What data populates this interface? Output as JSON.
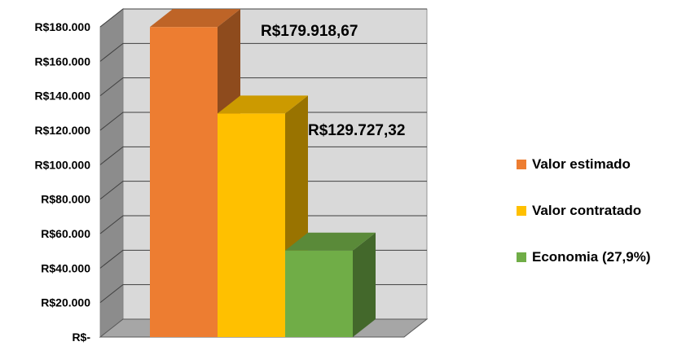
{
  "chart_data": {
    "type": "bar",
    "style": "3d-clustered",
    "categories": [
      ""
    ],
    "series": [
      {
        "name": "Valor estimado",
        "value": 179918.67,
        "color": "#ED7D31",
        "data_label": "R$179.918,67"
      },
      {
        "name": "Valor contratado",
        "value": 129727.32,
        "color": "#FFC000",
        "data_label": "R$129.727,32"
      },
      {
        "name": "Economia (27,9%)",
        "value": 50191.35,
        "color": "#70AD47",
        "data_label": ""
      }
    ],
    "ylim": [
      0,
      180000
    ],
    "y_ticks": [
      0,
      20000,
      40000,
      60000,
      80000,
      100000,
      120000,
      140000,
      160000,
      180000
    ],
    "y_tick_labels": [
      "R$-",
      "R$20.000",
      "R$40.000",
      "R$60.000",
      "R$80.000",
      "R$100.000",
      "R$120.000",
      "R$140.000",
      "R$160.000",
      "R$180.000"
    ],
    "grid": true,
    "legend_position": "right",
    "wall_color": "#D9D9D9",
    "floor_color": "#A6A6A6"
  }
}
